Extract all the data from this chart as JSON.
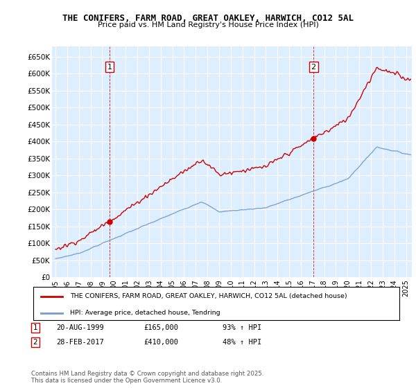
{
  "title": "THE CONIFERS, FARM ROAD, GREAT OAKLEY, HARWICH, CO12 5AL",
  "subtitle": "Price paid vs. HM Land Registry's House Price Index (HPI)",
  "ylabel_ticks": [
    "£0",
    "£50K",
    "£100K",
    "£150K",
    "£200K",
    "£250K",
    "£300K",
    "£350K",
    "£400K",
    "£450K",
    "£500K",
    "£550K",
    "£600K",
    "£650K"
  ],
  "ylim": [
    0,
    680000
  ],
  "ytick_vals": [
    0,
    50000,
    100000,
    150000,
    200000,
    250000,
    300000,
    350000,
    400000,
    450000,
    500000,
    550000,
    600000,
    650000
  ],
  "red_color": "#cc0000",
  "blue_color": "#7799cc",
  "background_color": "#ddeeff",
  "sale1_date": 1999.625,
  "sale1_price": 165000,
  "sale2_date": 2017.083,
  "sale2_price": 410000,
  "annotation1": {
    "label": "1",
    "date": "20-AUG-1999",
    "price": 165000,
    "hpi_pct": "93% ↑ HPI"
  },
  "annotation2": {
    "label": "2",
    "date": "28-FEB-2017",
    "price": 410000,
    "hpi_pct": "48% ↑ HPI"
  },
  "legend_line1": "THE CONIFERS, FARM ROAD, GREAT OAKLEY, HARWICH, CO12 5AL (detached house)",
  "legend_line2": "HPI: Average price, detached house, Tendring",
  "footer": "Contains HM Land Registry data © Crown copyright and database right 2025.\nThis data is licensed under the Open Government Licence v3.0."
}
